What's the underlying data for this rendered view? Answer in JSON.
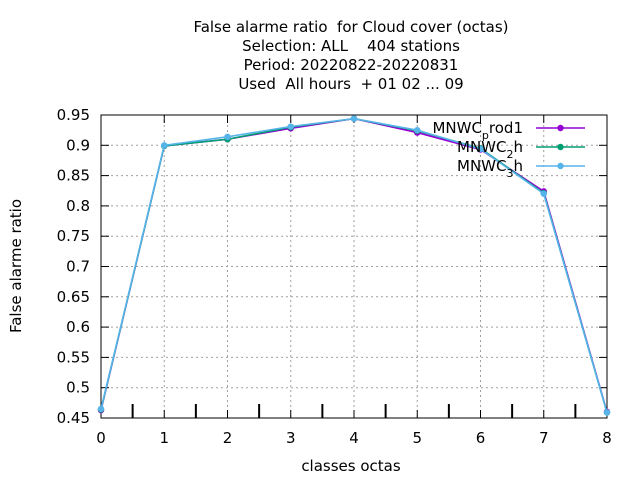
{
  "title_lines": [
    "False alarme ratio  for Cloud cover (octas)",
    "Selection: ALL    404 stations",
    "Period: 20220822-20220831",
    "Used  All hours  + 01 02 ... 09"
  ],
  "colors": {
    "series1": "#9400d3",
    "series2": "#009e73",
    "series3": "#56b4e9",
    "grid": "#a0a0a0",
    "axis": "#000000"
  },
  "chart_data": {
    "type": "line",
    "xlabel": "classes octas",
    "ylabel": "False alarme ratio",
    "xlim": [
      0,
      8
    ],
    "ylim": [
      0.45,
      0.95
    ],
    "xticks": [
      0,
      1,
      2,
      3,
      4,
      5,
      6,
      7,
      8
    ],
    "yticks": [
      0.45,
      0.5,
      0.55,
      0.6,
      0.65,
      0.7,
      0.75,
      0.8,
      0.85,
      0.9,
      0.95
    ],
    "grid": true,
    "legend_position": "top-right",
    "x": [
      0,
      1,
      2,
      3,
      4,
      5,
      6,
      7,
      8
    ],
    "series": [
      {
        "name": "MNWC_prod1",
        "legend": [
          "MNWC",
          "p",
          "rod1"
        ],
        "color": "#9400d3",
        "values": [
          0.463,
          0.899,
          0.91,
          0.928,
          0.944,
          0.921,
          0.893,
          0.824,
          0.46
        ]
      },
      {
        "name": "MNWC_2h",
        "legend": [
          "MNWC",
          "2",
          "h"
        ],
        "color": "#009e73",
        "values": [
          0.464,
          0.899,
          0.91,
          0.93,
          0.944,
          0.924,
          0.895,
          0.821,
          0.459
        ]
      },
      {
        "name": "MNWC_3h",
        "legend": [
          "MNWC",
          "3",
          "h"
        ],
        "color": "#56b4e9",
        "values": [
          0.465,
          0.9,
          0.914,
          0.931,
          0.944,
          0.925,
          0.894,
          0.82,
          0.459
        ]
      }
    ]
  }
}
